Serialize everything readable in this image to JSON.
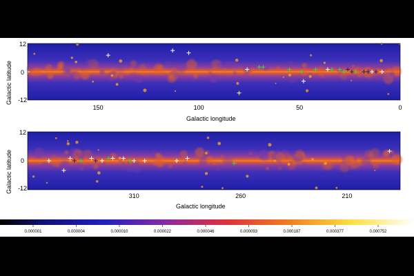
{
  "panels": [
    {
      "id": "top",
      "ylabel": "Galactic latitude",
      "xlabel": "Galactic longitude",
      "y_ticks": [
        "12",
        "0",
        "-12"
      ],
      "x_ticks": [
        {
          "label": "150",
          "lon": 150
        },
        {
          "label": "100",
          "lon": 100
        },
        {
          "label": "50",
          "lon": 50
        },
        {
          "label": "0",
          "lon": 0
        }
      ],
      "lon_range": [
        185,
        0
      ],
      "lat_range": [
        -12,
        12
      ],
      "sources_white": [
        {
          "l": 145,
          "b": 7
        },
        {
          "l": 113,
          "b": 9
        },
        {
          "l": 105,
          "b": 8
        },
        {
          "l": 48,
          "b": -4
        },
        {
          "l": 80,
          "b": -9
        },
        {
          "l": 76,
          "b": 1
        },
        {
          "l": 14,
          "b": 0
        },
        {
          "l": 9,
          "b": 0
        },
        {
          "l": 36,
          "b": 1
        },
        {
          "l": 185,
          "b": 0
        }
      ],
      "sources_green": [
        {
          "l": 70,
          "b": 2
        },
        {
          "l": 68,
          "b": 2
        },
        {
          "l": 55,
          "b": 1
        },
        {
          "l": 49,
          "b": 0
        },
        {
          "l": 42,
          "b": 1
        },
        {
          "l": 34,
          "b": 1
        },
        {
          "l": 30,
          "b": 1
        },
        {
          "l": 28,
          "b": 0
        },
        {
          "l": 22,
          "b": 0
        }
      ],
      "sources_blue": [
        {
          "l": 26,
          "b": 1
        },
        {
          "l": 24,
          "b": 0
        },
        {
          "l": 16,
          "b": 0
        },
        {
          "l": 12,
          "b": 0
        },
        {
          "l": 18,
          "b": 0
        }
      ]
    },
    {
      "id": "bottom",
      "ylabel": "Galactic latitude",
      "xlabel": "Galactic longitude",
      "y_ticks": [
        "12",
        "0",
        "-12"
      ],
      "x_ticks": [
        {
          "label": "310",
          "lon": 310
        },
        {
          "label": "260",
          "lon": 260
        },
        {
          "label": "210",
          "lon": 210
        }
      ],
      "lon_range": [
        360,
        185
      ],
      "lat_range": [
        -12,
        12
      ],
      "sources_white": [
        {
          "l": 350,
          "b": 0
        },
        {
          "l": 343,
          "b": -4
        },
        {
          "l": 340,
          "b": 1
        },
        {
          "l": 325,
          "b": 0
        },
        {
          "l": 320,
          "b": 1
        },
        {
          "l": 310,
          "b": 0
        },
        {
          "l": 305,
          "b": 0
        },
        {
          "l": 290,
          "b": 0
        },
        {
          "l": 285,
          "b": 1
        },
        {
          "l": 190,
          "b": 4
        },
        {
          "l": 330,
          "b": 1
        },
        {
          "l": 315,
          "b": 1
        }
      ],
      "sources_green": [
        {
          "l": 335,
          "b": 0
        },
        {
          "l": 322,
          "b": 1
        },
        {
          "l": 312,
          "b": 0
        },
        {
          "l": 263,
          "b": -1
        }
      ],
      "sources_blue": [
        {
          "l": 338,
          "b": 0
        },
        {
          "l": 328,
          "b": 0
        }
      ]
    }
  ],
  "colorbar": {
    "ticks": [
      "0.000001",
      "0.000004",
      "0.000010",
      "0.000022",
      "0.000046",
      "0.000093",
      "0.000187",
      "0.000377",
      "0.000752"
    ]
  },
  "colors": {
    "background": "#000000",
    "map_low": "#1a1aa8",
    "map_mid": "#c03a6a",
    "map_high": "#ffd040",
    "source_white": "#ffffff",
    "source_green": "#39d34a",
    "source_blue": "#1a2080"
  }
}
